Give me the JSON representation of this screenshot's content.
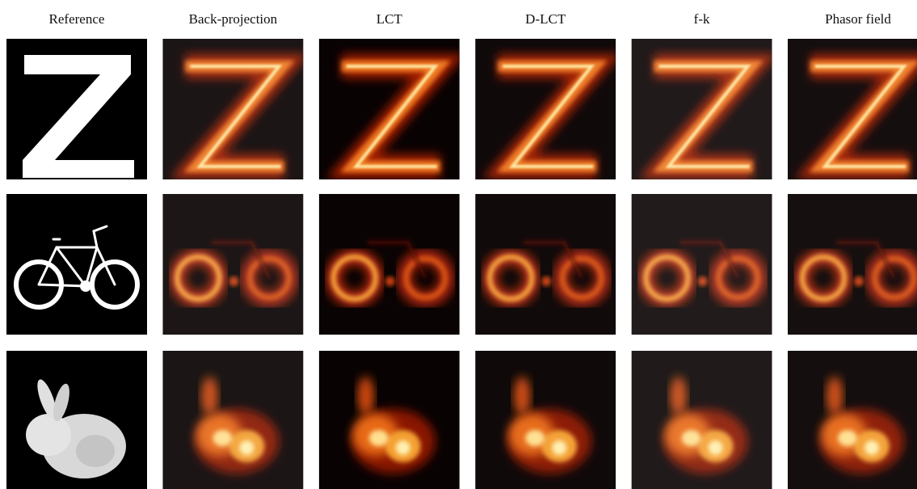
{
  "columns": [
    "Reference",
    "Back-projection",
    "LCT",
    "D-LCT",
    "f-k",
    "Phasor field"
  ]
}
